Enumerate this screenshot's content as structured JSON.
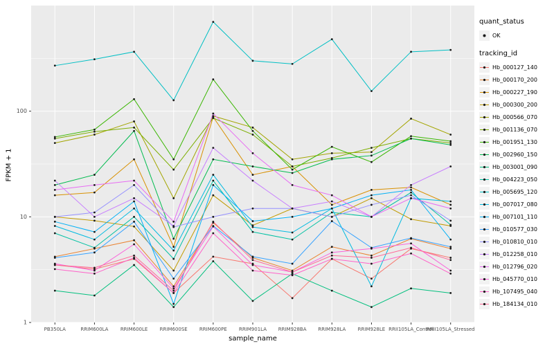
{
  "chart_data": {
    "type": "line",
    "title": "",
    "xlabel": "sample_name",
    "ylabel": "FPKM + 1",
    "y_scale": "log10",
    "ylim": [
      1,
      1000
    ],
    "y_major_ticks": [
      1,
      10,
      100
    ],
    "y_tick_labels": [
      "1",
      "10",
      "100"
    ],
    "y_minor_ticks": [
      3.1623,
      31.623,
      316.23
    ],
    "panel_bg": "#EBEBEB",
    "grid_color": "#FFFFFF",
    "point_color": "#1A1A1A",
    "tick_color": "#333333",
    "tick_label_color": "#4D4D4D",
    "legend_position": "right",
    "categories": [
      "PB350LA",
      "RRIM600LA",
      "RRIM600LE",
      "RRIM600SE",
      "RRIM600PE",
      "RRIM901LA",
      "RRIM928BA",
      "RRIM928LA",
      "RRIM928LE",
      "RRII105LA_Control",
      "RRII105LA_Stressed"
    ],
    "legend": {
      "quant_status_title": "quant_status",
      "quant_status_items": [
        {
          "label": "OK",
          "shape": "point"
        }
      ],
      "tracking_id_title": "tracking_id"
    },
    "series": [
      {
        "name": "Hb_000127_140",
        "color": "#F8766D",
        "values": [
          3.5,
          3.2,
          4.0,
          1.9,
          4.2,
          3.6,
          1.7,
          4.0,
          2.6,
          5.0,
          4.1
        ]
      },
      {
        "name": "Hb_000170_200",
        "color": "#EA8331",
        "values": [
          4.2,
          5.0,
          6.0,
          2.2,
          8.8,
          4.1,
          3.1,
          5.2,
          4.3,
          6.2,
          5.0
        ]
      },
      {
        "name": "Hb_000227_190",
        "color": "#D89000",
        "values": [
          16,
          17,
          35,
          5.2,
          88,
          25,
          30,
          13,
          18,
          19,
          13
        ]
      },
      {
        "name": "Hb_000300_200",
        "color": "#C09B00",
        "values": [
          10,
          9.2,
          8.1,
          3.1,
          16,
          8.3,
          12,
          10,
          15,
          9.5,
          8.2
        ]
      },
      {
        "name": "Hb_000566_070",
        "color": "#A3A500",
        "values": [
          50,
          60,
          80,
          15,
          90,
          70,
          35,
          40,
          41,
          85,
          60
        ]
      },
      {
        "name": "Hb_001136_070",
        "color": "#7CAE00",
        "values": [
          55,
          64,
          70,
          28,
          86,
          60,
          30,
          36,
          45,
          55,
          50
        ]
      },
      {
        "name": "Hb_001951_130",
        "color": "#39B600",
        "values": [
          57,
          67,
          130,
          35,
          200,
          65,
          28,
          46,
          33,
          58,
          52
        ]
      },
      {
        "name": "Hb_002960_150",
        "color": "#00BB4E",
        "values": [
          20,
          25,
          65,
          6.2,
          35,
          30,
          26,
          35,
          38,
          55,
          48
        ]
      },
      {
        "name": "Hb_003001_090",
        "color": "#00BF7D",
        "values": [
          2.0,
          1.8,
          3.5,
          1.4,
          3.8,
          1.6,
          2.9,
          2.0,
          1.4,
          2.1,
          1.9
        ]
      },
      {
        "name": "Hb_004223_050",
        "color": "#00C1A3",
        "values": [
          7.0,
          5.1,
          10,
          4.0,
          22,
          7.2,
          6.1,
          11,
          10,
          17,
          8.4
        ]
      },
      {
        "name": "Hb_005695_120",
        "color": "#00BFC4",
        "values": [
          270,
          310,
          365,
          127,
          700,
          300,
          280,
          480,
          155,
          365,
          380
        ]
      },
      {
        "name": "Hb_007017_080",
        "color": "#00BAE0",
        "values": [
          8.2,
          6.1,
          12,
          4.8,
          25,
          8.0,
          7.1,
          12,
          2.2,
          15,
          14
        ]
      },
      {
        "name": "Hb_007101_110",
        "color": "#00B0F6",
        "values": [
          9.0,
          7.2,
          14,
          1.5,
          20,
          9.1,
          10,
          12,
          16,
          18,
          6.1
        ]
      },
      {
        "name": "Hb_010577_030",
        "color": "#35A2FF",
        "values": [
          4.1,
          4.6,
          9.0,
          2.6,
          8.2,
          4.2,
          3.6,
          9.1,
          5.1,
          6.3,
          5.2
        ]
      },
      {
        "name": "Hb_010810_010",
        "color": "#9590FF",
        "values": [
          10,
          11,
          20,
          8.0,
          10,
          12,
          12,
          10,
          13,
          16,
          9.2
        ]
      },
      {
        "name": "Hb_012258_010",
        "color": "#C77CFF",
        "values": [
          22,
          10,
          15,
          8.2,
          45,
          22,
          12,
          14,
          10,
          20,
          30
        ]
      },
      {
        "name": "Hb_012796_020",
        "color": "#E76BF3",
        "values": [
          18,
          20,
          22,
          9.0,
          95,
          40,
          20,
          16,
          10,
          15,
          12
        ]
      },
      {
        "name": "Hb_045770_010",
        "color": "#FA62DB",
        "values": [
          3.6,
          3.1,
          5.5,
          2.1,
          8.1,
          3.5,
          3.0,
          4.6,
          5.0,
          5.6,
          3.1
        ]
      },
      {
        "name": "Hb_107495_040",
        "color": "#FF61C9",
        "values": [
          3.2,
          2.9,
          4.1,
          1.9,
          7.0,
          3.1,
          2.8,
          4.0,
          3.6,
          4.5,
          2.9
        ]
      },
      {
        "name": "Hb_184134_010",
        "color": "#FF6A98",
        "values": [
          3.5,
          3.3,
          4.3,
          2.0,
          9.0,
          3.9,
          3.0,
          4.3,
          4.1,
          5.1,
          3.9
        ]
      }
    ]
  }
}
